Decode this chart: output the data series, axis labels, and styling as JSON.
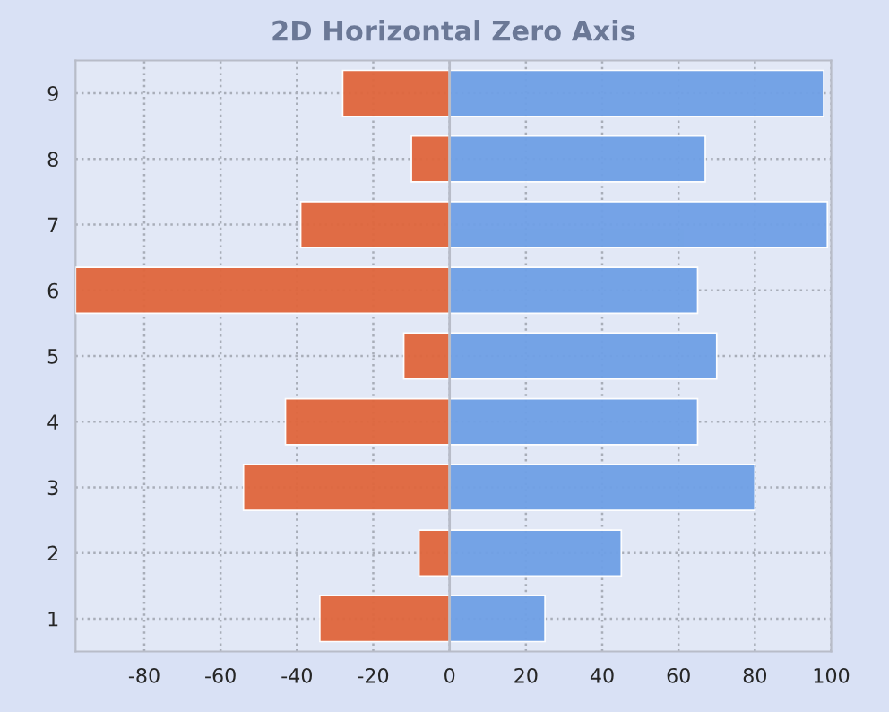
{
  "chart_data": {
    "type": "bar",
    "orientation": "horizontal",
    "title": "2D Horizontal Zero Axis",
    "categories": [
      "9",
      "8",
      "7",
      "6",
      "5",
      "4",
      "3",
      "2",
      "1"
    ],
    "series": [
      {
        "color": "#e0663c",
        "values": [
          -28,
          -10,
          -39,
          -98,
          -12,
          -43,
          -54,
          -8,
          -34
        ]
      },
      {
        "color": "#6fa0e6",
        "values": [
          98,
          67,
          99,
          65,
          70,
          65,
          80,
          45,
          25
        ]
      }
    ],
    "xlim": [
      -98,
      100
    ],
    "xticks": [
      -80,
      -60,
      -40,
      -20,
      0,
      20,
      40,
      60,
      80,
      100
    ],
    "grid": true
  }
}
